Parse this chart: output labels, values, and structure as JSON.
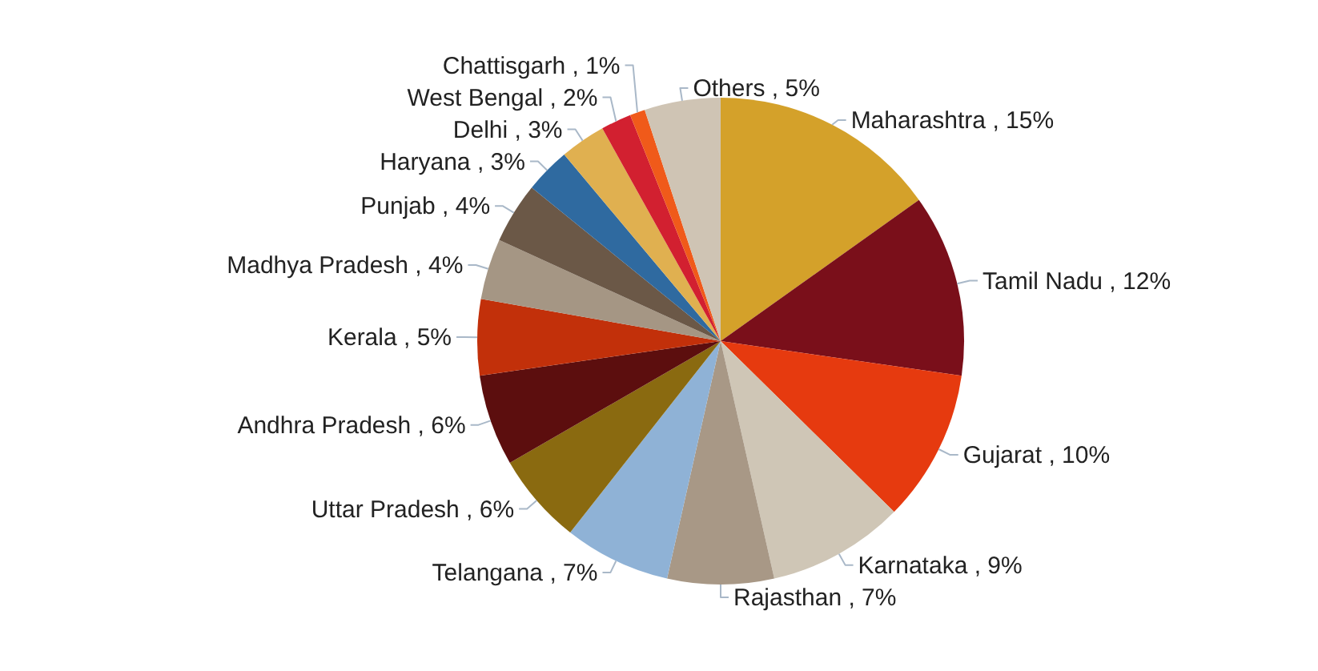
{
  "chart_data": {
    "type": "pie",
    "categories": [
      "Maharashtra",
      "Tamil Nadu",
      "Gujarat",
      "Karnataka",
      "Rajasthan",
      "Telangana",
      "Uttar Pradesh",
      "Andhra Pradesh",
      "Kerala",
      "Madhya Pradesh",
      "Punjab",
      "Haryana",
      "Delhi",
      "West Bengal",
      "Chattisgarh",
      "Others"
    ],
    "values": [
      15,
      12,
      10,
      9,
      7,
      7,
      6,
      6,
      5,
      4,
      4,
      3,
      3,
      2,
      1,
      5
    ],
    "value_labels": [
      ", 15%",
      ", 12%",
      ", 10%",
      ", 9%",
      ", 7%",
      ", 7%",
      ", 6%",
      ", 6%",
      ", 5%",
      ", 4%",
      ", 4%",
      ", 3%",
      ", 3%",
      ", 2%",
      ", 1%",
      ", 5%"
    ],
    "colors": [
      "#d4a12a",
      "#7a0f1a",
      "#e63a0f",
      "#cfc6b6",
      "#a89886",
      "#8fb2d6",
      "#8a6a10",
      "#5c0e0e",
      "#c2300a",
      "#a59684",
      "#6b5847",
      "#2f6aa0",
      "#e0b050",
      "#d22030",
      "#f05a1a",
      "#cfc4b4"
    ]
  }
}
